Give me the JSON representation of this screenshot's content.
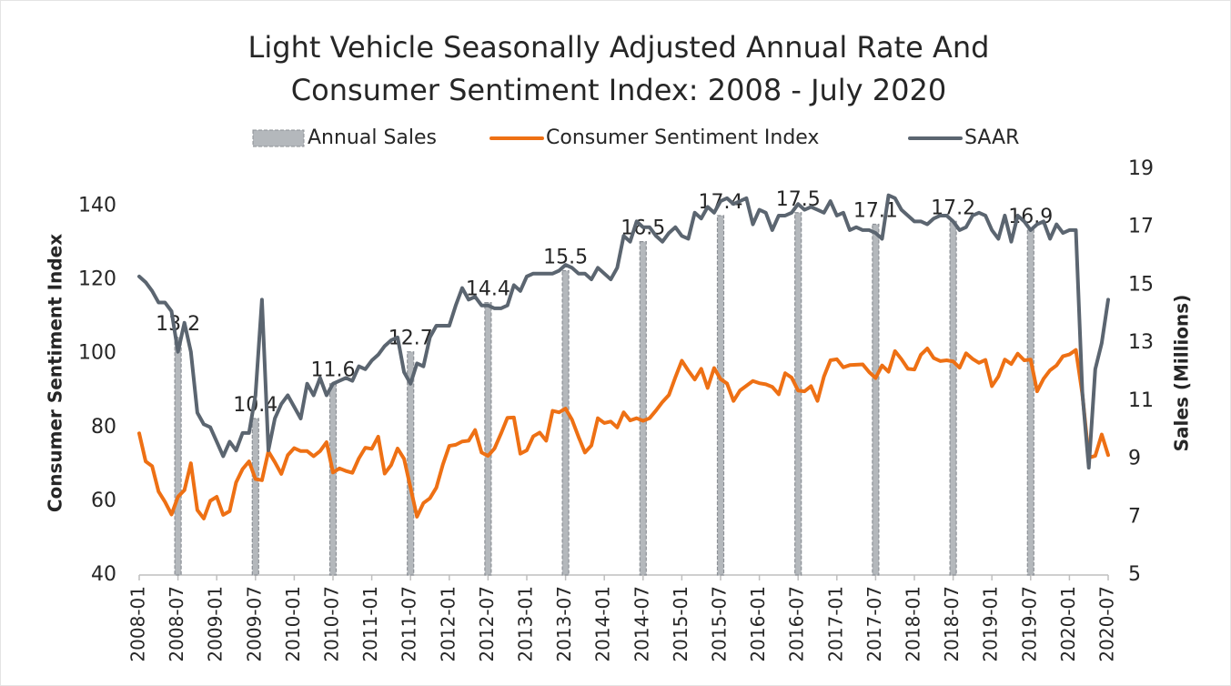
{
  "chart_data": {
    "type": "combo",
    "title": [
      "Light Vehicle Seasonally Adjusted Annual Rate And",
      "Consumer Sentiment Index: 2008 - July 2020"
    ],
    "ylabel": "Consumer Sentiment Index",
    "y2label": "Sales (Millions)",
    "ylim": [
      40,
      150
    ],
    "yticks": [
      40,
      60,
      80,
      100,
      120,
      140
    ],
    "y2lim": [
      5,
      19
    ],
    "y2ticks": [
      5,
      7,
      9,
      11,
      13,
      15,
      17,
      19
    ],
    "categories": [
      "2008-01",
      null,
      null,
      null,
      null,
      null,
      "2008-07",
      null,
      null,
      null,
      null,
      null,
      "2009-01",
      null,
      null,
      null,
      null,
      null,
      "2009-07",
      null,
      null,
      null,
      null,
      null,
      "2010-01",
      null,
      null,
      null,
      null,
      null,
      "2010-07",
      null,
      null,
      null,
      null,
      null,
      "2011-01",
      null,
      null,
      null,
      null,
      null,
      "2011-07",
      null,
      null,
      null,
      null,
      null,
      "2012-01",
      null,
      null,
      null,
      null,
      null,
      "2012-07",
      null,
      null,
      null,
      null,
      null,
      "2013-01",
      null,
      null,
      null,
      null,
      null,
      "2013-07",
      null,
      null,
      null,
      null,
      null,
      "2014-01",
      null,
      null,
      null,
      null,
      null,
      "2014-07",
      null,
      null,
      null,
      null,
      null,
      "2015-01",
      null,
      null,
      null,
      null,
      null,
      "2015-07",
      null,
      null,
      null,
      null,
      null,
      "2016-01",
      null,
      null,
      null,
      null,
      null,
      "2016-07",
      null,
      null,
      null,
      null,
      null,
      "2017-01",
      null,
      null,
      null,
      null,
      null,
      "2017-07",
      null,
      null,
      null,
      null,
      null,
      "2018-01",
      null,
      null,
      null,
      null,
      null,
      "2018-07",
      null,
      null,
      null,
      null,
      null,
      "2019-01",
      null,
      null,
      null,
      null,
      null,
      "2019-07",
      null,
      null,
      null,
      null,
      null,
      "2020-01",
      null,
      null,
      null,
      null,
      null,
      "2020-07"
    ],
    "series": [
      {
        "name": "Annual Sales",
        "type": "bar",
        "axis": "y2",
        "color": "#b4b8bc",
        "values": [
          null,
          null,
          null,
          null,
          null,
          null,
          13.2,
          null,
          null,
          null,
          null,
          null,
          null,
          null,
          null,
          null,
          null,
          null,
          10.4,
          null,
          null,
          null,
          null,
          null,
          null,
          null,
          null,
          null,
          null,
          null,
          11.6,
          null,
          null,
          null,
          null,
          null,
          null,
          null,
          null,
          null,
          null,
          null,
          12.7,
          null,
          null,
          null,
          null,
          null,
          null,
          null,
          null,
          null,
          null,
          null,
          14.4,
          null,
          null,
          null,
          null,
          null,
          null,
          null,
          null,
          null,
          null,
          null,
          15.5,
          null,
          null,
          null,
          null,
          null,
          null,
          null,
          null,
          null,
          null,
          null,
          16.5,
          null,
          null,
          null,
          null,
          null,
          null,
          null,
          null,
          null,
          null,
          null,
          17.4,
          null,
          null,
          null,
          null,
          null,
          null,
          null,
          null,
          null,
          null,
          null,
          17.5,
          null,
          null,
          null,
          null,
          null,
          null,
          null,
          null,
          null,
          null,
          null,
          17.1,
          null,
          null,
          null,
          null,
          null,
          null,
          null,
          null,
          null,
          null,
          null,
          17.2,
          null,
          null,
          null,
          null,
          null,
          null,
          null,
          null,
          null,
          null,
          null,
          16.9,
          null,
          null,
          null,
          null,
          null,
          null,
          null,
          null,
          null,
          null,
          null,
          null
        ]
      },
      {
        "name": "Consumer Sentiment Index",
        "type": "line",
        "color": "#ee7014",
        "values": [
          78.4,
          70.8,
          69.5,
          62.6,
          59.8,
          56.4,
          61.2,
          63.0,
          70.3,
          57.6,
          55.3,
          60.1,
          61.2,
          56.3,
          57.3,
          65.1,
          68.7,
          70.8,
          66.0,
          65.7,
          73.5,
          70.6,
          67.4,
          72.5,
          74.4,
          73.6,
          73.6,
          72.2,
          73.6,
          76.0,
          67.8,
          68.9,
          68.2,
          67.7,
          71.6,
          74.5,
          74.2,
          77.5,
          67.5,
          69.8,
          74.3,
          71.5,
          63.7,
          55.8,
          59.5,
          60.8,
          63.7,
          69.9,
          75.0,
          75.3,
          76.2,
          76.4,
          79.3,
          73.2,
          72.3,
          74.3,
          78.3,
          82.6,
          82.7,
          72.9,
          73.8,
          77.6,
          78.6,
          76.4,
          84.5,
          84.1,
          85.1,
          82.1,
          77.5,
          73.2,
          75.1,
          82.5,
          81.2,
          81.6,
          80.0,
          84.1,
          81.9,
          82.5,
          81.8,
          82.5,
          84.6,
          86.9,
          88.8,
          93.6,
          98.1,
          95.4,
          93.0,
          95.9,
          90.7,
          96.1,
          93.1,
          91.9,
          87.2,
          90.0,
          91.3,
          92.6,
          92.0,
          91.7,
          91.0,
          89.0,
          94.7,
          93.5,
          90.0,
          89.8,
          91.2,
          87.2,
          93.8,
          98.2,
          98.5,
          96.3,
          96.9,
          97.0,
          97.1,
          95.0,
          93.4,
          96.8,
          95.1,
          100.7,
          98.5,
          95.9,
          95.7,
          99.7,
          101.4,
          98.8,
          98.0,
          98.2,
          97.9,
          96.2,
          100.1,
          98.6,
          97.5,
          98.3,
          91.2,
          93.8,
          98.4,
          97.2,
          100.0,
          98.2,
          98.4,
          89.8,
          93.2,
          95.5,
          96.8,
          99.3,
          99.8,
          101.0,
          89.1,
          71.8,
          72.3,
          78.1,
          72.5
        ]
      },
      {
        "name": "SAAR",
        "type": "line",
        "axis": "y2",
        "color": "#5b6570",
        "values": [
          15.3,
          15.1,
          14.8,
          14.4,
          14.4,
          14.1,
          12.7,
          13.7,
          12.7,
          10.6,
          10.2,
          10.1,
          9.6,
          9.1,
          9.6,
          9.3,
          9.9,
          9.9,
          11.2,
          14.5,
          9.3,
          10.4,
          10.9,
          11.2,
          10.8,
          10.4,
          11.6,
          11.2,
          11.8,
          11.2,
          11.6,
          11.7,
          11.8,
          11.7,
          12.2,
          12.1,
          12.4,
          12.6,
          12.9,
          13.1,
          13.2,
          12.0,
          11.6,
          12.3,
          12.2,
          13.2,
          13.6,
          13.6,
          13.6,
          14.3,
          14.9,
          14.5,
          14.6,
          14.3,
          14.3,
          14.2,
          14.2,
          14.3,
          15.0,
          14.8,
          15.3,
          15.4,
          15.4,
          15.4,
          15.4,
          15.5,
          15.7,
          15.6,
          15.4,
          15.4,
          15.2,
          15.6,
          15.4,
          15.2,
          15.6,
          16.7,
          16.5,
          17.2,
          17.0,
          17.0,
          16.7,
          16.5,
          16.8,
          17.0,
          16.7,
          16.6,
          17.5,
          17.3,
          17.7,
          17.5,
          17.9,
          18.0,
          17.8,
          17.9,
          18.0,
          17.1,
          17.6,
          17.5,
          16.9,
          17.4,
          17.4,
          17.5,
          17.8,
          17.6,
          17.7,
          17.6,
          17.5,
          17.9,
          17.4,
          17.5,
          16.9,
          17.0,
          16.9,
          16.9,
          16.8,
          16.6,
          18.1,
          18.0,
          17.6,
          17.4,
          17.2,
          17.2,
          17.1,
          17.3,
          17.4,
          17.4,
          17.2,
          16.9,
          17.0,
          17.4,
          17.5,
          17.4,
          16.9,
          16.6,
          17.4,
          16.5,
          17.4,
          17.2,
          16.9,
          17.1,
          17.2,
          16.6,
          17.1,
          16.8,
          16.9,
          16.9,
          11.3,
          8.7,
          12.1,
          13.0,
          14.5
        ]
      }
    ]
  }
}
